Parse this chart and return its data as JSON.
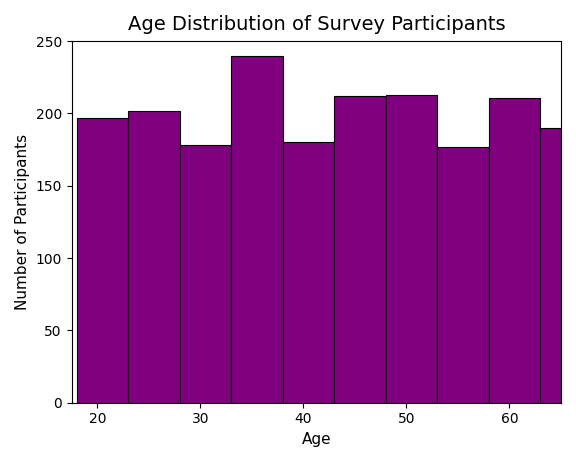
{
  "title": "Age Distribution of Survey Participants",
  "xlabel": "Age",
  "ylabel": "Number of Participants",
  "bar_color": "#800080",
  "edge_color": "black",
  "bin_edges": [
    18,
    23,
    28,
    33,
    38,
    43,
    48,
    53,
    58,
    63,
    68
  ],
  "counts": [
    197,
    202,
    178,
    240,
    180,
    212,
    213,
    177,
    211,
    190
  ],
  "ylim": [
    0,
    250
  ],
  "yticks": [
    0,
    50,
    100,
    150,
    200,
    250
  ],
  "xticks": [
    20,
    30,
    40,
    50,
    60
  ],
  "figsize": [
    5.76,
    4.62
  ],
  "dpi": 100,
  "title_fontsize": 14,
  "label_fontsize": 11,
  "tick_fontsize": 10
}
